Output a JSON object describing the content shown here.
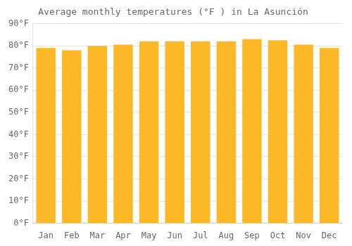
{
  "chart_data": {
    "type": "bar",
    "title": "Average monthly temperatures (°F ) in La Asunción",
    "categories": [
      "Jan",
      "Feb",
      "Mar",
      "Apr",
      "May",
      "Jun",
      "Jul",
      "Aug",
      "Sep",
      "Oct",
      "Nov",
      "Dec"
    ],
    "values": [
      79,
      78,
      80,
      80.5,
      82,
      82,
      82,
      82,
      83,
      82.5,
      80.5,
      79
    ],
    "color": "#FDB827",
    "ylim": [
      0,
      90
    ],
    "yticks": [
      {
        "value": 0,
        "label": "0°F"
      },
      {
        "value": 10,
        "label": "10°F"
      },
      {
        "value": 20,
        "label": "20°F"
      },
      {
        "value": 30,
        "label": "30°F"
      },
      {
        "value": 40,
        "label": "40°F"
      },
      {
        "value": 50,
        "label": "50°F"
      },
      {
        "value": 60,
        "label": "60°F"
      },
      {
        "value": 70,
        "label": "70°F"
      },
      {
        "value": 80,
        "label": "80°F"
      },
      {
        "value": 90,
        "label": "90°F"
      }
    ],
    "grid": true
  }
}
